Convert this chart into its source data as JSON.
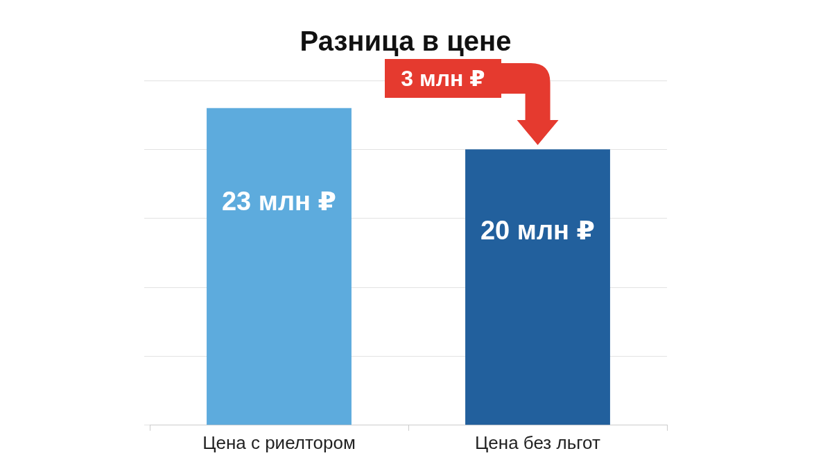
{
  "chart_data": {
    "type": "bar",
    "title": "Разница в цене",
    "categories": [
      "Цена с риелтором",
      "Цена без льгот"
    ],
    "values": [
      23,
      20
    ],
    "colors": [
      "#5dabdd",
      "#22609d"
    ],
    "value_labels": [
      "23 млн ₽",
      "20 млн ₽"
    ],
    "annotations": [
      "3 млн ₽"
    ],
    "grid": "y",
    "legend": false
  }
}
